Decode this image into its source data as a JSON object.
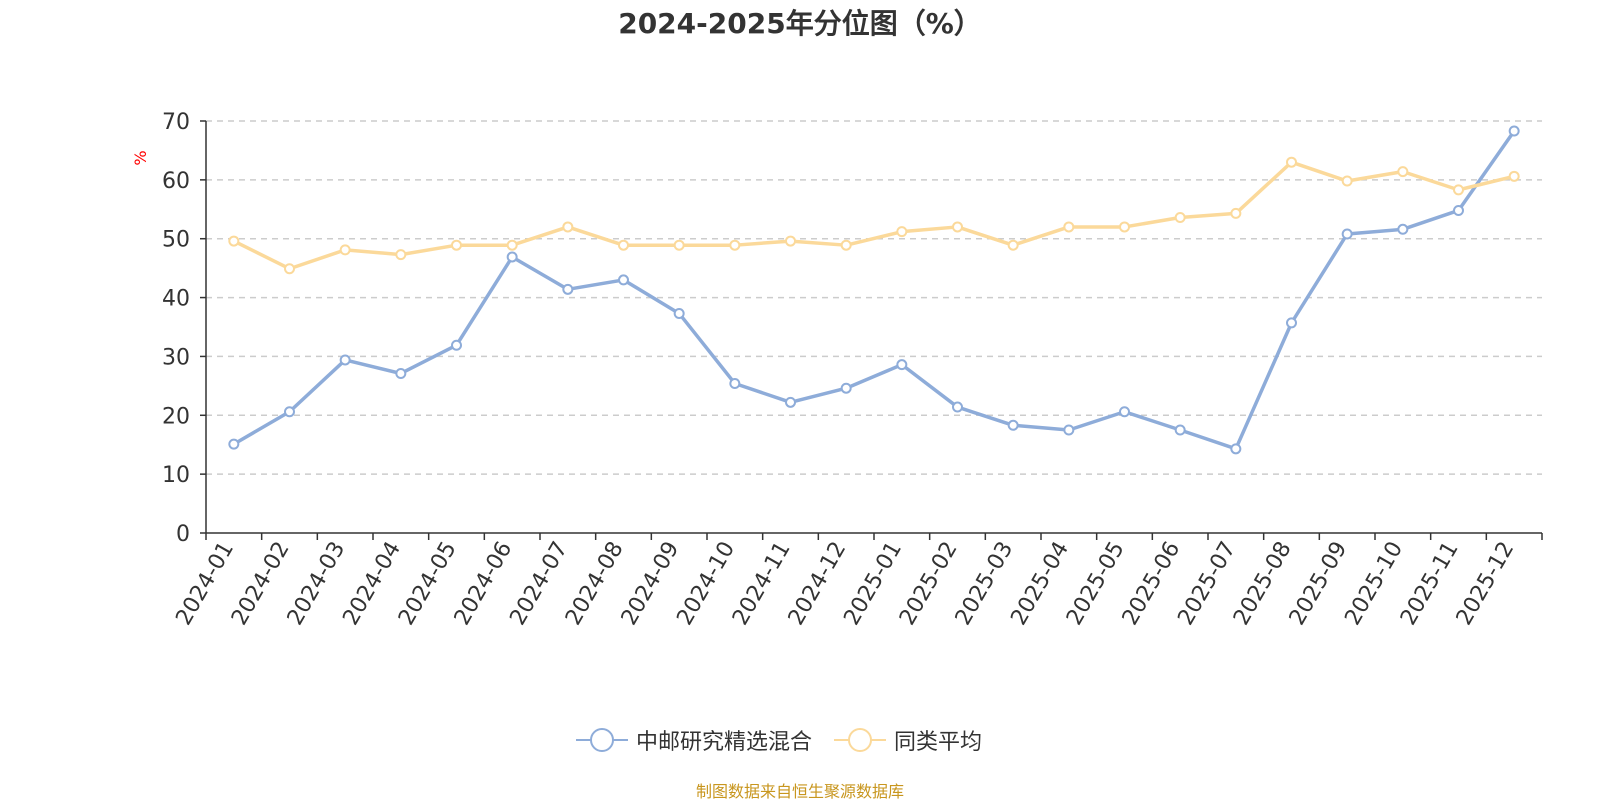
{
  "chart_data": {
    "type": "line",
    "title": "2024-2025年分位图（%）",
    "ylabel": "%",
    "xlabel": "",
    "ylim": [
      0,
      70
    ],
    "yticks": [
      0,
      10,
      20,
      30,
      40,
      50,
      60,
      70
    ],
    "grid": "horizontal-dashed",
    "legend_position": "bottom",
    "categories": [
      "2024-01",
      "2024-02",
      "2024-03",
      "2024-04",
      "2024-05",
      "2024-06",
      "2024-07",
      "2024-08",
      "2024-09",
      "2024-10",
      "2024-11",
      "2024-12",
      "2025-01",
      "2025-02",
      "2025-03",
      "2025-04",
      "2025-05",
      "2025-06",
      "2025-07",
      "2025-08",
      "2025-09",
      "2025-10",
      "2025-11",
      "2025-12"
    ],
    "series": [
      {
        "name": "中邮研究精选混合",
        "color": "#8eacd9",
        "values": [
          15.1,
          20.6,
          29.4,
          27.1,
          31.9,
          46.9,
          41.4,
          43.0,
          37.3,
          25.4,
          22.2,
          24.6,
          28.6,
          21.4,
          18.3,
          17.5,
          20.6,
          17.5,
          14.3,
          35.7,
          50.8,
          51.6,
          54.8,
          68.3
        ]
      },
      {
        "name": "同类平均",
        "color": "#fbd99a",
        "values": [
          49.6,
          44.9,
          48.1,
          47.3,
          48.9,
          48.9,
          52.0,
          48.9,
          48.9,
          48.9,
          49.6,
          48.9,
          51.2,
          52.0,
          48.9,
          52.0,
          52.0,
          53.6,
          54.3,
          63.0,
          59.8,
          61.4,
          58.3,
          60.6
        ]
      }
    ]
  },
  "source": "制图数据来自恒生聚源数据库"
}
